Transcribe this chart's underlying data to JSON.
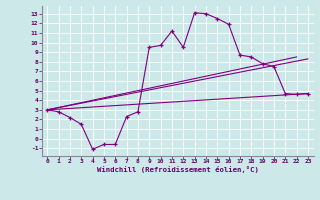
{
  "xlabel": "Windchill (Refroidissement éolien,°C)",
  "bg_color": "#cce8e8",
  "line_color": "#800080",
  "grid_color": "#aacccc",
  "x_ticks": [
    0,
    1,
    2,
    3,
    4,
    5,
    6,
    7,
    8,
    9,
    10,
    11,
    12,
    13,
    14,
    15,
    16,
    17,
    18,
    19,
    20,
    21,
    22,
    23
  ],
  "y_ticks": [
    -1,
    0,
    1,
    2,
    3,
    4,
    5,
    6,
    7,
    8,
    9,
    10,
    11,
    12,
    13
  ],
  "ylim": [
    -1.8,
    13.8
  ],
  "xlim": [
    -0.5,
    23.5
  ],
  "main_x": [
    0,
    1,
    2,
    3,
    4,
    5,
    6,
    7,
    8,
    9,
    10,
    11,
    12,
    13,
    14,
    15,
    16,
    17,
    18,
    19,
    20,
    21,
    22,
    23
  ],
  "main_y": [
    3.0,
    2.8,
    2.2,
    1.5,
    -1.1,
    -0.6,
    -0.6,
    2.3,
    2.8,
    9.5,
    9.7,
    11.2,
    9.5,
    13.1,
    13.0,
    12.5,
    11.9,
    8.7,
    8.5,
    7.8,
    7.5,
    4.7,
    4.6,
    4.7
  ],
  "diag_lines": [
    {
      "x": [
        0,
        23
      ],
      "y": [
        3.0,
        4.7
      ]
    },
    {
      "x": [
        0,
        23
      ],
      "y": [
        3.0,
        8.3
      ]
    },
    {
      "x": [
        0,
        22
      ],
      "y": [
        3.0,
        8.5
      ]
    }
  ]
}
